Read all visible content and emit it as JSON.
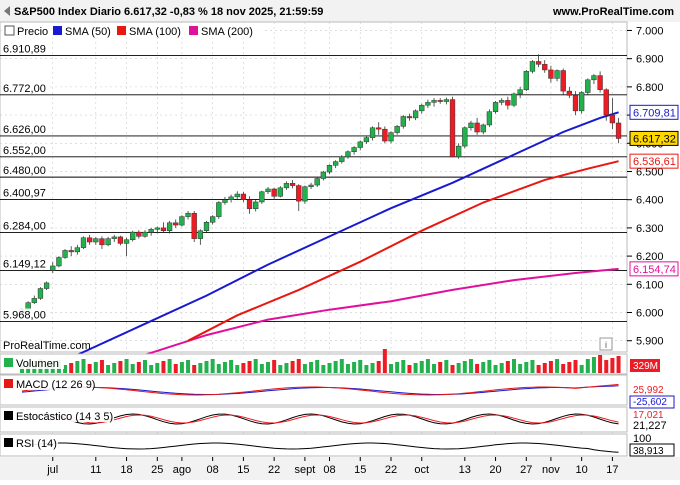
{
  "header": {
    "title": "S&P500 Index Diario 6.617,32 -0,83 % 18 nov 2025, 21:59:59",
    "site": "www.ProRealTime.com",
    "watermark": "ProRealTime.com"
  },
  "colors": {
    "up": "#22b14c",
    "down": "#ed1c24",
    "sma50": "#1919d2",
    "sma100": "#e8170f",
    "sma200": "#e0109a",
    "grid": "#cccccc",
    "hline": "#000000"
  },
  "legend": [
    {
      "label": "Precio",
      "color": "#ffffff",
      "icon": "candle-icon"
    },
    {
      "label": "SMA (50)",
      "color": "#1919d2"
    },
    {
      "label": "SMA (100)",
      "color": "#e8170f"
    },
    {
      "label": "SMA (200)",
      "color": "#e0109a"
    }
  ],
  "price_labels": {
    "last": "6.617,32",
    "sma50": "6.709,81",
    "sma100": "6.536,61",
    "sma200": "6.154,74"
  },
  "left_levels": [
    "6.910,89",
    "6.772,00",
    "6.626,00",
    "6.552,00",
    "6.480,00",
    "6.400,97",
    "6.284,00",
    "6.149,12",
    "5.968,00"
  ],
  "info_icon": "i",
  "indicators": {
    "volume": {
      "label": "Volumen",
      "value": "329M"
    },
    "macd": {
      "label": "MACD (12 26 9)",
      "values": [
        "25,992",
        "-25,602"
      ]
    },
    "stoch": {
      "label": "Estocástico (14 3 5)",
      "values": [
        "17,021",
        "21,227"
      ]
    },
    "rsi": {
      "label": "RSI (14)",
      "values": [
        "100",
        "38,913"
      ]
    }
  },
  "x_labels": [
    "jul",
    "11",
    "18",
    "25",
    "ago",
    "08",
    "15",
    "22",
    "sept",
    "08",
    "15",
    "22",
    "oct",
    "13",
    "20",
    "27",
    "nov",
    "10",
    "17"
  ],
  "chart_data": {
    "type": "candlestick",
    "title": "S&P500 Index Diario 6.617,32 -0,83 % 18 nov 2025, 21:59:59",
    "y_ticks": [
      "7.000",
      "6.900",
      "6.800",
      "6.700",
      "6.600",
      "6.500",
      "6.400",
      "6.300",
      "6.200",
      "6.100",
      "6.000",
      "5.900"
    ],
    "y_tick_values": [
      7000,
      6900,
      6800,
      6700,
      6600,
      6500,
      6400,
      6300,
      6200,
      6100,
      6000,
      5900
    ],
    "ylim": [
      5860,
      7030
    ],
    "horizontal_levels": [
      6910.89,
      6772,
      6626,
      6552,
      6480,
      6400.97,
      6284,
      6149.12,
      5968
    ],
    "x_ticks": [
      {
        "label": "jul",
        "bar": 5
      },
      {
        "label": "11",
        "bar": 12
      },
      {
        "label": "18",
        "bar": 17
      },
      {
        "label": "25",
        "bar": 22
      },
      {
        "label": "ago",
        "bar": 26
      },
      {
        "label": "08",
        "bar": 31
      },
      {
        "label": "15",
        "bar": 36
      },
      {
        "label": "22",
        "bar": 41
      },
      {
        "label": "sept",
        "bar": 46
      },
      {
        "label": "08",
        "bar": 50
      },
      {
        "label": "15",
        "bar": 55
      },
      {
        "label": "22",
        "bar": 60
      },
      {
        "label": "oct",
        "bar": 65
      },
      {
        "label": "13",
        "bar": 72
      },
      {
        "label": "20",
        "bar": 77
      },
      {
        "label": "27",
        "bar": 82
      },
      {
        "label": "nov",
        "bar": 86
      },
      {
        "label": "10",
        "bar": 91
      },
      {
        "label": "17",
        "bar": 96
      }
    ],
    "candles": [
      [
        6000,
        6015,
        5995,
        6010
      ],
      [
        6010,
        6040,
        6005,
        6035
      ],
      [
        6035,
        6060,
        6030,
        6050
      ],
      [
        6050,
        6090,
        6045,
        6085
      ],
      [
        6085,
        6110,
        6080,
        6105
      ],
      [
        6150,
        6180,
        6140,
        6165
      ],
      [
        6165,
        6200,
        6160,
        6195
      ],
      [
        6195,
        6225,
        6190,
        6220
      ],
      [
        6220,
        6235,
        6200,
        6215
      ],
      [
        6215,
        6240,
        6205,
        6230
      ],
      [
        6230,
        6270,
        6225,
        6265
      ],
      [
        6265,
        6275,
        6240,
        6250
      ],
      [
        6250,
        6268,
        6240,
        6262
      ],
      [
        6262,
        6270,
        6225,
        6240
      ],
      [
        6240,
        6268,
        6235,
        6262
      ],
      [
        6262,
        6275,
        6250,
        6268
      ],
      [
        6268,
        6272,
        6238,
        6245
      ],
      [
        6245,
        6265,
        6200,
        6258
      ],
      [
        6258,
        6290,
        6252,
        6285
      ],
      [
        6285,
        6292,
        6262,
        6270
      ],
      [
        6270,
        6292,
        6265,
        6285
      ],
      [
        6285,
        6300,
        6272,
        6295
      ],
      [
        6295,
        6305,
        6280,
        6300
      ],
      [
        6300,
        6320,
        6285,
        6290
      ],
      [
        6290,
        6325,
        6280,
        6318
      ],
      [
        6318,
        6330,
        6300,
        6310
      ],
      [
        6310,
        6345,
        6305,
        6340
      ],
      [
        6340,
        6360,
        6330,
        6352
      ],
      [
        6352,
        6360,
        6250,
        6262
      ],
      [
        6262,
        6295,
        6240,
        6290
      ],
      [
        6290,
        6325,
        6285,
        6320
      ],
      [
        6320,
        6345,
        6312,
        6340
      ],
      [
        6340,
        6395,
        6332,
        6390
      ],
      [
        6390,
        6410,
        6382,
        6400
      ],
      [
        6400,
        6418,
        6390,
        6410
      ],
      [
        6410,
        6430,
        6402,
        6420
      ],
      [
        6420,
        6428,
        6392,
        6400
      ],
      [
        6400,
        6412,
        6350,
        6368
      ],
      [
        6368,
        6400,
        6358,
        6392
      ],
      [
        6392,
        6432,
        6385,
        6428
      ],
      [
        6428,
        6445,
        6420,
        6438
      ],
      [
        6438,
        6442,
        6400,
        6412
      ],
      [
        6412,
        6448,
        6408,
        6442
      ],
      [
        6442,
        6465,
        6435,
        6458
      ],
      [
        6458,
        6470,
        6440,
        6450
      ],
      [
        6450,
        6455,
        6360,
        6395
      ],
      [
        6395,
        6450,
        6385,
        6446
      ],
      [
        6446,
        6460,
        6438,
        6452
      ],
      [
        6452,
        6480,
        6445,
        6475
      ],
      [
        6475,
        6502,
        6468,
        6498
      ],
      [
        6498,
        6525,
        6490,
        6522
      ],
      [
        6522,
        6540,
        6512,
        6535
      ],
      [
        6535,
        6558,
        6528,
        6552
      ],
      [
        6552,
        6575,
        6545,
        6570
      ],
      [
        6570,
        6590,
        6560,
        6585
      ],
      [
        6585,
        6610,
        6575,
        6605
      ],
      [
        6605,
        6625,
        6598,
        6620
      ],
      [
        6620,
        6660,
        6610,
        6655
      ],
      [
        6655,
        6675,
        6630,
        6650
      ],
      [
        6650,
        6660,
        6600,
        6608
      ],
      [
        6608,
        6642,
        6600,
        6638
      ],
      [
        6638,
        6665,
        6630,
        6660
      ],
      [
        6660,
        6700,
        6652,
        6695
      ],
      [
        6695,
        6705,
        6680,
        6690
      ],
      [
        6690,
        6720,
        6682,
        6715
      ],
      [
        6715,
        6740,
        6705,
        6735
      ],
      [
        6735,
        6755,
        6725,
        6745
      ],
      [
        6745,
        6760,
        6730,
        6752
      ],
      [
        6752,
        6760,
        6740,
        6748
      ],
      [
        6748,
        6762,
        6738,
        6755
      ],
      [
        6755,
        6765,
        6550,
        6552
      ],
      [
        6552,
        6600,
        6545,
        6590
      ],
      [
        6590,
        6660,
        6582,
        6655
      ],
      [
        6655,
        6680,
        6645,
        6672
      ],
      [
        6672,
        6690,
        6630,
        6640
      ],
      [
        6640,
        6670,
        6632,
        6665
      ],
      [
        6665,
        6720,
        6658,
        6712
      ],
      [
        6712,
        6750,
        6705,
        6745
      ],
      [
        6745,
        6760,
        6735,
        6752
      ],
      [
        6752,
        6765,
        6720,
        6735
      ],
      [
        6735,
        6780,
        6728,
        6775
      ],
      [
        6775,
        6800,
        6760,
        6790
      ],
      [
        6790,
        6860,
        6785,
        6855
      ],
      [
        6855,
        6895,
        6848,
        6890
      ],
      [
        6890,
        6915,
        6870,
        6880
      ],
      [
        6880,
        6895,
        6850,
        6860
      ],
      [
        6860,
        6875,
        6815,
        6830
      ],
      [
        6830,
        6862,
        6820,
        6858
      ],
      [
        6858,
        6865,
        6770,
        6785
      ],
      [
        6785,
        6800,
        6760,
        6770
      ],
      [
        6770,
        6785,
        6700,
        6715
      ],
      [
        6715,
        6785,
        6705,
        6780
      ],
      [
        6780,
        6830,
        6772,
        6825
      ],
      [
        6825,
        6845,
        6810,
        6840
      ],
      [
        6840,
        6855,
        6780,
        6790
      ],
      [
        6790,
        6795,
        6680,
        6700
      ],
      [
        6700,
        6760,
        6650,
        6672
      ],
      [
        6672,
        6690,
        6600,
        6617
      ]
    ],
    "sma50": [
      [
        0,
        5760
      ],
      [
        10,
        5860
      ],
      [
        20,
        5960
      ],
      [
        30,
        6060
      ],
      [
        40,
        6170
      ],
      [
        50,
        6270
      ],
      [
        60,
        6370
      ],
      [
        70,
        6460
      ],
      [
        80,
        6560
      ],
      [
        88,
        6640
      ],
      [
        94,
        6690
      ],
      [
        97,
        6709.81
      ]
    ],
    "sma100": [
      [
        27,
        5900
      ],
      [
        35,
        5990
      ],
      [
        45,
        6080
      ],
      [
        55,
        6180
      ],
      [
        65,
        6290
      ],
      [
        75,
        6390
      ],
      [
        85,
        6470
      ],
      [
        92,
        6510
      ],
      [
        97,
        6536.61
      ]
    ],
    "sma200": [
      [
        20,
        5850
      ],
      [
        30,
        5920
      ],
      [
        40,
        5975
      ],
      [
        50,
        6010
      ],
      [
        60,
        6040
      ],
      [
        70,
        6080
      ],
      [
        80,
        6115
      ],
      [
        90,
        6140
      ],
      [
        97,
        6154.74
      ]
    ],
    "grid": true,
    "legend_position": "top-left"
  }
}
